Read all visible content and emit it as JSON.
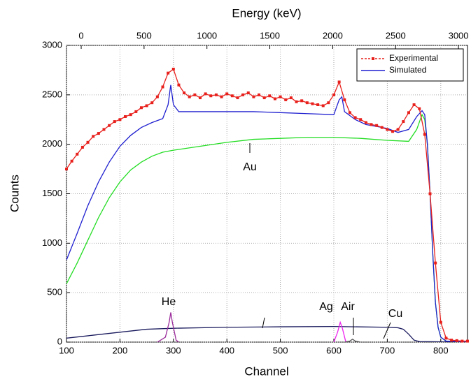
{
  "chart_data": {
    "type": "line",
    "xlabel": "Channel",
    "ylabel": "Counts",
    "x2label": "Energy (keV)",
    "xlim": [
      100,
      850
    ],
    "xticks": [
      100,
      200,
      300,
      400,
      500,
      600,
      700,
      800
    ],
    "ylim": [
      0,
      3000
    ],
    "yticks": [
      0,
      500,
      1000,
      1500,
      2000,
      2500,
      3000
    ],
    "x2lim": [
      -117,
      3072
    ],
    "x2ticks": [
      0,
      500,
      1000,
      1500,
      2000,
      2500,
      3000
    ],
    "grid": true,
    "legend_position": "upper right",
    "series": [
      {
        "name": "Experimental",
        "color": "#e8201c",
        "markers": true,
        "legend": true,
        "x": [
          100,
          110,
          120,
          130,
          140,
          150,
          160,
          170,
          180,
          190,
          200,
          210,
          220,
          230,
          240,
          250,
          260,
          270,
          280,
          290,
          300,
          310,
          320,
          330,
          340,
          350,
          360,
          370,
          380,
          390,
          400,
          410,
          420,
          430,
          440,
          450,
          460,
          470,
          480,
          490,
          500,
          510,
          520,
          530,
          540,
          550,
          560,
          570,
          580,
          590,
          600,
          610,
          620,
          630,
          640,
          650,
          660,
          670,
          680,
          690,
          700,
          710,
          720,
          730,
          740,
          750,
          760,
          770,
          780,
          790,
          800,
          810,
          820,
          830,
          840,
          850
        ],
        "values": [
          1750,
          1830,
          1900,
          1970,
          2020,
          2080,
          2110,
          2150,
          2190,
          2230,
          2250,
          2280,
          2300,
          2330,
          2370,
          2390,
          2420,
          2480,
          2580,
          2720,
          2760,
          2600,
          2520,
          2480,
          2500,
          2470,
          2510,
          2490,
          2500,
          2480,
          2510,
          2490,
          2470,
          2500,
          2520,
          2480,
          2500,
          2470,
          2490,
          2460,
          2480,
          2450,
          2470,
          2430,
          2440,
          2420,
          2410,
          2400,
          2390,
          2420,
          2500,
          2630,
          2450,
          2320,
          2270,
          2250,
          2220,
          2200,
          2190,
          2170,
          2150,
          2130,
          2150,
          2230,
          2320,
          2400,
          2360,
          2100,
          1500,
          800,
          200,
          40,
          20,
          15,
          10,
          10
        ]
      },
      {
        "name": "Simulated",
        "color": "#1f1fd0",
        "markers": false,
        "legend": true,
        "x": [
          100,
          120,
          140,
          160,
          180,
          200,
          220,
          240,
          260,
          280,
          290,
          295,
          300,
          310,
          350,
          400,
          450,
          500,
          550,
          600,
          610,
          615,
          620,
          640,
          660,
          680,
          700,
          720,
          740,
          755,
          765,
          770,
          775,
          780,
          785,
          790,
          795,
          800,
          810,
          850
        ],
        "values": [
          830,
          1100,
          1380,
          1620,
          1820,
          1980,
          2090,
          2170,
          2220,
          2260,
          2400,
          2600,
          2400,
          2330,
          2330,
          2330,
          2330,
          2320,
          2310,
          2300,
          2450,
          2480,
          2330,
          2250,
          2200,
          2180,
          2160,
          2120,
          2150,
          2280,
          2340,
          2300,
          2000,
          1500,
          900,
          400,
          150,
          50,
          10,
          5
        ]
      },
      {
        "name": "Au",
        "color": "#22dd22",
        "markers": false,
        "legend": false,
        "x": [
          100,
          120,
          140,
          160,
          180,
          200,
          220,
          240,
          260,
          280,
          300,
          350,
          400,
          450,
          500,
          550,
          600,
          650,
          700,
          740,
          755,
          765,
          770,
          775,
          780,
          785,
          790,
          795,
          800,
          810,
          850
        ],
        "values": [
          590,
          800,
          1030,
          1260,
          1460,
          1620,
          1740,
          1820,
          1880,
          1920,
          1940,
          1980,
          2020,
          2050,
          2060,
          2070,
          2070,
          2060,
          2040,
          2030,
          2150,
          2300,
          2250,
          2000,
          1500,
          900,
          400,
          150,
          50,
          10,
          5
        ]
      },
      {
        "name": "Ag",
        "color": "#1a1a5e",
        "markers": false,
        "legend": false,
        "x": [
          100,
          150,
          200,
          250,
          300,
          400,
          500,
          600,
          700,
          720,
          730,
          740,
          750,
          760,
          850
        ],
        "values": [
          40,
          70,
          100,
          130,
          140,
          150,
          155,
          158,
          150,
          145,
          130,
          80,
          20,
          5,
          0
        ]
      },
      {
        "name": "He",
        "color": "#9a2a9a",
        "markers": false,
        "legend": false,
        "x": [
          270,
          285,
          292,
          295,
          298,
          305,
          310
        ],
        "values": [
          0,
          50,
          200,
          300,
          200,
          20,
          0
        ]
      },
      {
        "name": "Air",
        "color": "#ee22ee",
        "markers": false,
        "legend": false,
        "x": [
          600,
          607,
          612,
          616,
          622,
          625
        ],
        "values": [
          0,
          100,
          200,
          140,
          10,
          0
        ]
      },
      {
        "name": "Cu",
        "color": "#555555",
        "markers": false,
        "legend": false,
        "x": [
          620,
          630,
          635,
          640,
          650
        ],
        "values": [
          0,
          10,
          30,
          10,
          0
        ]
      }
    ]
  }
}
